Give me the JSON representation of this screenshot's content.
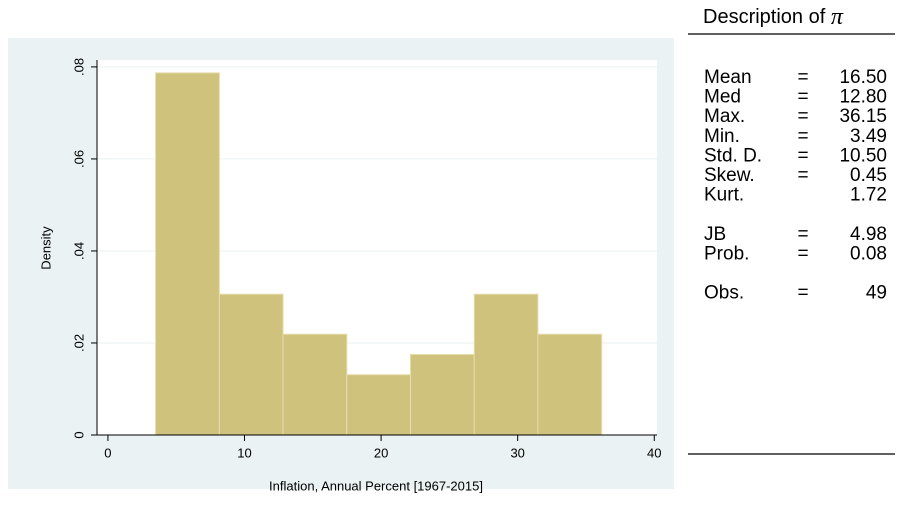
{
  "chart_data": {
    "type": "histogram",
    "xlabel": "Inflation, Annual Percent [1967-2015]",
    "ylabel": "Density",
    "bins": [
      3.49,
      8.16,
      12.82,
      17.49,
      22.15,
      26.82,
      31.48,
      36.15
    ],
    "values": [
      0.0787,
      0.0306,
      0.0219,
      0.0131,
      0.0175,
      0.0306,
      0.0219
    ],
    "color": "#cfc27c",
    "xlim": [
      -0.8,
      40.2
    ],
    "xticks": [
      0,
      10,
      20,
      30,
      40
    ],
    "ylim": [
      0,
      0.0815
    ],
    "yticks": [
      0,
      {
        "value": 0.02,
        "label": ".02"
      },
      {
        "value": 0.04,
        "label": ".04"
      },
      {
        "value": 0.06,
        "label": ".06"
      },
      {
        "value": 0.08,
        "label": ".08"
      }
    ],
    "grid": true
  },
  "stats": {
    "title": "Description of",
    "symbol": "π",
    "groups": [
      [
        {
          "label": "Mean",
          "sign": "=",
          "value": "16.50"
        },
        {
          "label": "Med",
          "sign": "=",
          "value": "12.80"
        },
        {
          "label": "Max.",
          "sign": "=",
          "value": "36.15"
        },
        {
          "label": "Min.",
          "sign": "=",
          "value": "3.49"
        },
        {
          "label": "Std. D.",
          "sign": "=",
          "value": "10.50"
        },
        {
          "label": "Skew.",
          "sign": "=",
          "value": "0.45"
        },
        {
          "label": "Kurt.",
          "value": "1.72"
        }
      ],
      [
        {
          "label": "JB",
          "sign": "=",
          "value": "4.98"
        },
        {
          "label": "Prob.",
          "sign": "=",
          "value": "0.08"
        }
      ],
      [
        {
          "label": "Obs.",
          "sign": "=",
          "value": "49"
        }
      ]
    ]
  }
}
